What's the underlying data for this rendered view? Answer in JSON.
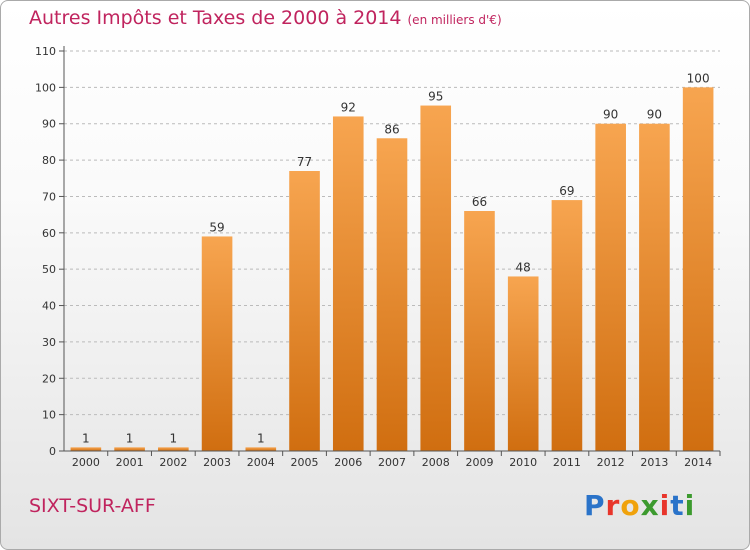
{
  "header": {
    "title": "Autres Impôts et Taxes de 2000 à 2014",
    "unit": "(en milliers d'€)"
  },
  "footer": {
    "commune": "SIXT-SUR-AFF",
    "logo_text": "Proxiti"
  },
  "colors": {
    "bar_light": "#f7a550",
    "bar_dark": "#d06e10",
    "title": "#c0245e"
  },
  "chart_data": {
    "type": "bar",
    "categories": [
      "2000",
      "2001",
      "2002",
      "2003",
      "2004",
      "2005",
      "2006",
      "2007",
      "2008",
      "2009",
      "2010",
      "2011",
      "2012",
      "2013",
      "2014"
    ],
    "values": [
      1,
      1,
      1,
      59,
      1,
      77,
      92,
      86,
      95,
      66,
      48,
      69,
      90,
      90,
      100
    ],
    "ylim": [
      0,
      110
    ],
    "yticks": [
      0,
      10,
      20,
      30,
      40,
      50,
      60,
      70,
      80,
      90,
      100,
      110
    ],
    "grid": "horizontal dashed",
    "data_labels": true
  }
}
